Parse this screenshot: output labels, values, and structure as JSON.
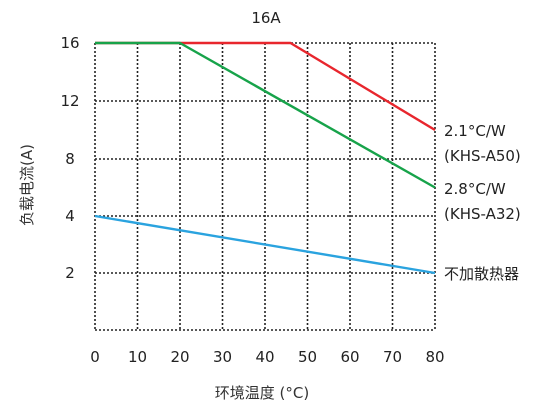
{
  "chart_data": {
    "type": "line",
    "title": "16A",
    "xlabel": "环境温度 (°C)",
    "ylabel": "负载电流(A)",
    "xlim": [
      0,
      80
    ],
    "ylim": [
      0,
      16
    ],
    "x_ticks": [
      "0",
      "10",
      "20",
      "30",
      "40",
      "50",
      "60",
      "70",
      "80"
    ],
    "y_ticks": [
      {
        "value": 16,
        "label": "16"
      },
      {
        "value": 12,
        "label": "12"
      },
      {
        "value": 8,
        "label": "8"
      },
      {
        "value": 4,
        "label": "4"
      },
      {
        "value": 2,
        "label": "2"
      }
    ],
    "grid": true,
    "y_scale_note": "nonlinear: ticks at 0,2,4,8,12,16 evenly spaced",
    "series": [
      {
        "label_lines": [
          "2.1°C/W",
          "(KHS-A50)"
        ],
        "color": "#e8262d",
        "points": [
          [
            0,
            16
          ],
          [
            46,
            16
          ],
          [
            80,
            10
          ]
        ]
      },
      {
        "label_lines": [
          "2.8°C/W",
          "(KHS-A32)"
        ],
        "color": "#17a34a",
        "points": [
          [
            0,
            16
          ],
          [
            20,
            16
          ],
          [
            80,
            6
          ]
        ]
      },
      {
        "label_lines": [
          "不加散热器"
        ],
        "color": "#2aa3df",
        "points": [
          [
            0,
            4
          ],
          [
            80,
            2
          ]
        ]
      }
    ]
  }
}
